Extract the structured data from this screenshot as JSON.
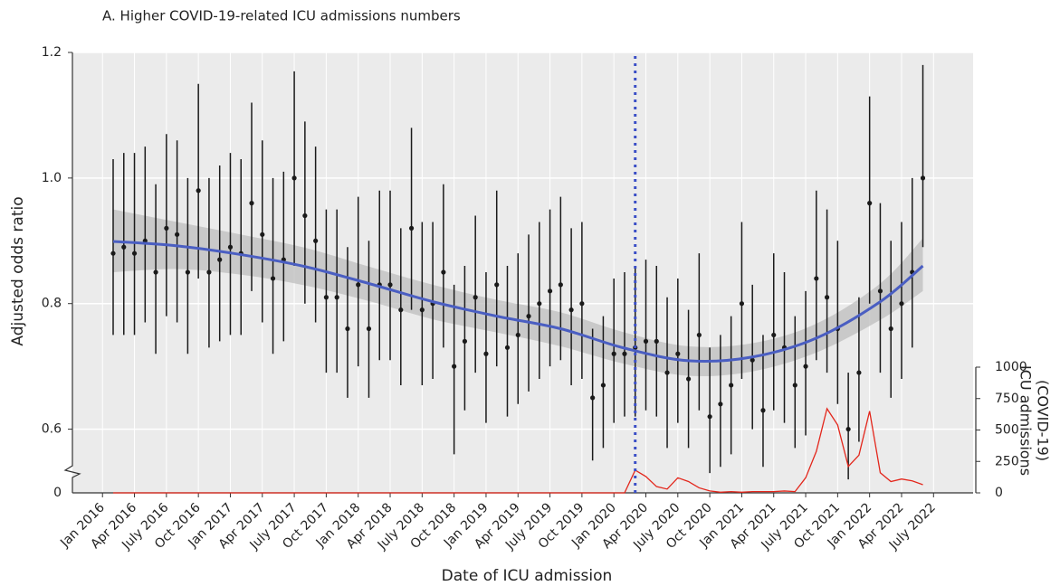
{
  "chart_data": {
    "type": "scatter",
    "title": "A. Higher COVID-19-related ICU admissions numbers",
    "x_label": "Date of ICU admission",
    "y_label": "Adjusted odds ratio",
    "y2_label": [
      "ICU admissions",
      "(COVID-19)"
    ],
    "x": [
      "2016-02",
      "2016-03",
      "2016-04",
      "2016-05",
      "2016-06",
      "2016-07",
      "2016-08",
      "2016-09",
      "2016-10",
      "2016-11",
      "2016-12",
      "2017-01",
      "2017-02",
      "2017-03",
      "2017-04",
      "2017-05",
      "2017-06",
      "2017-07",
      "2017-08",
      "2017-09",
      "2017-10",
      "2017-11",
      "2017-12",
      "2018-01",
      "2018-02",
      "2018-03",
      "2018-04",
      "2018-05",
      "2018-06",
      "2018-07",
      "2018-08",
      "2018-09",
      "2018-10",
      "2018-11",
      "2018-12",
      "2019-01",
      "2019-02",
      "2019-03",
      "2019-04",
      "2019-05",
      "2019-06",
      "2019-07",
      "2019-08",
      "2019-09",
      "2019-10",
      "2019-11",
      "2019-12",
      "2020-01",
      "2020-02",
      "2020-03",
      "2020-04",
      "2020-05",
      "2020-06",
      "2020-07",
      "2020-08",
      "2020-09",
      "2020-10",
      "2020-11",
      "2020-12",
      "2021-01",
      "2021-02",
      "2021-03",
      "2021-04",
      "2021-05",
      "2021-06",
      "2021-07",
      "2021-08",
      "2021-09",
      "2021-10",
      "2021-11",
      "2021-12",
      "2022-01",
      "2022-02",
      "2022-03",
      "2022-04",
      "2022-05",
      "2022-06"
    ],
    "values": [
      0.88,
      0.89,
      0.88,
      0.9,
      0.85,
      0.92,
      0.91,
      0.85,
      0.98,
      0.85,
      0.87,
      0.89,
      0.88,
      0.96,
      0.91,
      0.84,
      0.87,
      1.0,
      0.94,
      0.9,
      0.81,
      0.81,
      0.76,
      0.83,
      0.76,
      0.83,
      0.83,
      0.79,
      0.92,
      0.79,
      0.8,
      0.85,
      0.7,
      0.74,
      0.81,
      0.72,
      0.83,
      0.73,
      0.75,
      0.78,
      0.8,
      0.82,
      0.83,
      0.79,
      0.8,
      0.65,
      0.67,
      0.72,
      0.72,
      0.73,
      0.74,
      0.74,
      0.69,
      0.72,
      0.68,
      0.75,
      0.62,
      0.64,
      0.67,
      0.8,
      0.71,
      0.63,
      0.75,
      0.73,
      0.67,
      0.7,
      0.84,
      0.81,
      0.76,
      0.6,
      0.69,
      0.96,
      0.82,
      0.76,
      0.8,
      0.85,
      1.0
    ],
    "ci_lower": [
      0.75,
      0.75,
      0.75,
      0.77,
      0.72,
      0.78,
      0.77,
      0.72,
      0.84,
      0.73,
      0.74,
      0.75,
      0.75,
      0.82,
      0.77,
      0.72,
      0.74,
      0.86,
      0.8,
      0.77,
      0.69,
      0.69,
      0.65,
      0.7,
      0.65,
      0.71,
      0.71,
      0.67,
      0.79,
      0.67,
      0.68,
      0.73,
      0.56,
      0.63,
      0.69,
      0.61,
      0.7,
      0.62,
      0.64,
      0.66,
      0.68,
      0.7,
      0.71,
      0.67,
      0.68,
      0.55,
      0.57,
      0.61,
      0.62,
      0.62,
      0.63,
      0.62,
      0.57,
      0.61,
      0.57,
      0.63,
      0.53,
      0.54,
      0.56,
      0.68,
      0.6,
      0.54,
      0.63,
      0.61,
      0.57,
      0.59,
      0.71,
      0.69,
      0.64,
      0.52,
      0.58,
      0.8,
      0.69,
      0.65,
      0.68,
      0.73,
      0.89
    ],
    "ci_upper": [
      1.03,
      1.04,
      1.04,
      1.05,
      0.99,
      1.07,
      1.06,
      1.0,
      1.15,
      1.0,
      1.02,
      1.04,
      1.03,
      1.12,
      1.06,
      1.0,
      1.01,
      1.17,
      1.09,
      1.05,
      0.95,
      0.95,
      0.89,
      0.97,
      0.9,
      0.98,
      0.98,
      0.92,
      1.08,
      0.93,
      0.93,
      0.99,
      0.83,
      0.86,
      0.94,
      0.85,
      0.98,
      0.86,
      0.88,
      0.91,
      0.93,
      0.95,
      0.97,
      0.92,
      0.93,
      0.76,
      0.78,
      0.84,
      0.85,
      0.86,
      0.87,
      0.86,
      0.81,
      0.84,
      0.79,
      0.88,
      0.73,
      0.75,
      0.78,
      0.93,
      0.83,
      0.75,
      0.88,
      0.85,
      0.78,
      0.82,
      0.98,
      0.95,
      0.9,
      0.69,
      0.81,
      1.13,
      0.96,
      0.9,
      0.93,
      1.0,
      1.18
    ],
    "point_color": "#1a1a1a",
    "smooth": {
      "x": [
        "2016-02",
        "2016-08",
        "2017-02",
        "2017-08",
        "2018-02",
        "2018-08",
        "2019-02",
        "2019-08",
        "2020-02",
        "2020-08",
        "2021-02",
        "2021-08",
        "2022-02",
        "2022-06"
      ],
      "values": [
        0.899,
        0.892,
        0.878,
        0.859,
        0.832,
        0.803,
        0.78,
        0.76,
        0.729,
        0.709,
        0.715,
        0.745,
        0.803,
        0.86
      ],
      "lower": [
        0.85,
        0.855,
        0.846,
        0.829,
        0.804,
        0.775,
        0.754,
        0.732,
        0.704,
        0.685,
        0.692,
        0.722,
        0.774,
        0.82
      ],
      "upper": [
        0.95,
        0.93,
        0.91,
        0.889,
        0.859,
        0.83,
        0.806,
        0.786,
        0.754,
        0.732,
        0.737,
        0.768,
        0.832,
        0.904
      ],
      "color": "#4a5ec2",
      "band_color": "#bdbdbd"
    },
    "admissions": {
      "axis": "y2",
      "color": "#e3261b",
      "values": [
        0,
        0,
        0,
        0,
        0,
        0,
        0,
        0,
        0,
        0,
        0,
        0,
        0,
        0,
        0,
        0,
        0,
        0,
        0,
        0,
        0,
        0,
        0,
        0,
        0,
        0,
        0,
        0,
        0,
        0,
        0,
        0,
        0,
        0,
        0,
        0,
        0,
        0,
        0,
        0,
        0,
        0,
        0,
        0,
        0,
        0,
        0,
        0,
        0,
        180,
        130,
        50,
        30,
        120,
        90,
        40,
        15,
        5,
        10,
        5,
        10,
        10,
        10,
        15,
        10,
        120,
        330,
        670,
        540,
        210,
        300,
        650,
        160,
        90,
        110,
        95,
        65
      ]
    },
    "ylim": [
      0.5,
      1.2
    ],
    "yticks": [
      1.2,
      {
        "value": 1,
        "label": "1.0"
      },
      0.8,
      0.6
    ],
    "y_break_label": "0",
    "y2lim": [
      0,
      1000
    ],
    "y2ticks": [
      0,
      250,
      500,
      750,
      1000
    ],
    "xticks": [
      {
        "value": "2016-01",
        "label": "Jan 2016"
      },
      {
        "value": "2016-04",
        "label": "Apr 2016"
      },
      {
        "value": "2016-07",
        "label": "July 2016"
      },
      {
        "value": "2016-10",
        "label": "Oct 2016"
      },
      {
        "value": "2017-01",
        "label": "Jan 2017"
      },
      {
        "value": "2017-04",
        "label": "Apr 2017"
      },
      {
        "value": "2017-07",
        "label": "July 2017"
      },
      {
        "value": "2017-10",
        "label": "Oct 2017"
      },
      {
        "value": "2018-01",
        "label": "Jan 2018"
      },
      {
        "value": "2018-04",
        "label": "Apr 2018"
      },
      {
        "value": "2018-07",
        "label": "July 2018"
      },
      {
        "value": "2018-10",
        "label": "Oct 2018"
      },
      {
        "value": "2019-01",
        "label": "Jan 2019"
      },
      {
        "value": "2019-04",
        "label": "Apr 2019"
      },
      {
        "value": "2019-07",
        "label": "July 2019"
      },
      {
        "value": "2019-10",
        "label": "Oct 2019"
      },
      {
        "value": "2020-01",
        "label": "Jan 2020"
      },
      {
        "value": "2020-04",
        "label": "Apr 2020"
      },
      {
        "value": "2020-07",
        "label": "July 2020"
      },
      {
        "value": "2020-10",
        "label": "Oct 2020"
      },
      {
        "value": "2021-01",
        "label": "Jan 2021"
      },
      {
        "value": "2021-04",
        "label": "Apr 2021"
      },
      {
        "value": "2021-07",
        "label": "July 2021"
      },
      {
        "value": "2021-10",
        "label": "Oct 2021"
      },
      {
        "value": "2022-01",
        "label": "Jan 2022"
      },
      {
        "value": "2022-04",
        "label": "Apr 2022"
      },
      {
        "value": "2022-07",
        "label": "July 2022"
      }
    ],
    "vline_x": "2020-03",
    "vline_color": "#3a4ec6",
    "grid": true
  }
}
